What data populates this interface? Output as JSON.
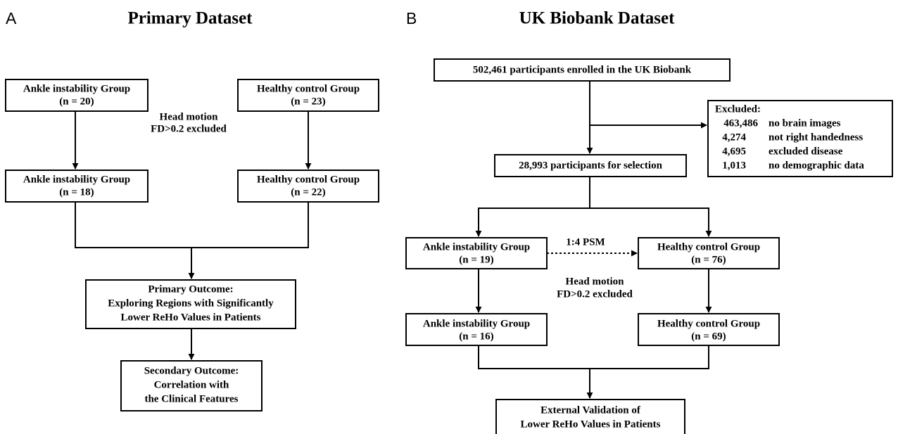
{
  "panels": [
    {
      "label": "A",
      "title": "Primary Dataset",
      "nodes": [
        {
          "lines": [
            "Ankle instability Group",
            "(n = 20)"
          ]
        },
        {
          "lines": [
            "Healthy control Group",
            "(n = 23)"
          ]
        },
        {
          "lines": [
            "Ankle instability Group",
            "(n = 18)"
          ]
        },
        {
          "lines": [
            "Healthy control Group",
            "(n = 22)"
          ]
        },
        {
          "lines": [
            "Primary Outcome:",
            "Exploring Regions with Significantly",
            "Lower ReHo Values in Patients"
          ]
        },
        {
          "lines": [
            "Secondary Outcome:",
            "Correlation with",
            "the Clinical Features"
          ]
        }
      ],
      "annotation": [
        "Head motion",
        "FD>0.2 excluded"
      ]
    },
    {
      "label": "B",
      "title": "UK Biobank Dataset",
      "nodes": [
        {
          "lines": [
            "502,461  participants enrolled in the UK Biobank"
          ]
        },
        {
          "lines": [
            "28,993 participants for selection"
          ]
        },
        {
          "lines": [
            "Ankle instability Group",
            "(n = 19)"
          ]
        },
        {
          "lines": [
            "Healthy control Group",
            "(n = 76)"
          ]
        },
        {
          "lines": [
            "Ankle instability Group",
            "(n = 16)"
          ]
        },
        {
          "lines": [
            "Healthy control Group",
            "(n = 69)"
          ]
        },
        {
          "lines": [
            "External Validation of",
            "Lower ReHo Values in Patients"
          ]
        }
      ],
      "excluded": {
        "heading": "Excluded:",
        "rows": [
          [
            "463,486",
            "no brain images"
          ],
          [
            "4,274",
            "not right handedness"
          ],
          [
            "4,695",
            "excluded disease"
          ],
          [
            "1,013",
            "no demographic data"
          ]
        ]
      },
      "psm": "1:4 PSM",
      "annotation": [
        "Head motion",
        "FD>0.2 excluded"
      ]
    }
  ]
}
